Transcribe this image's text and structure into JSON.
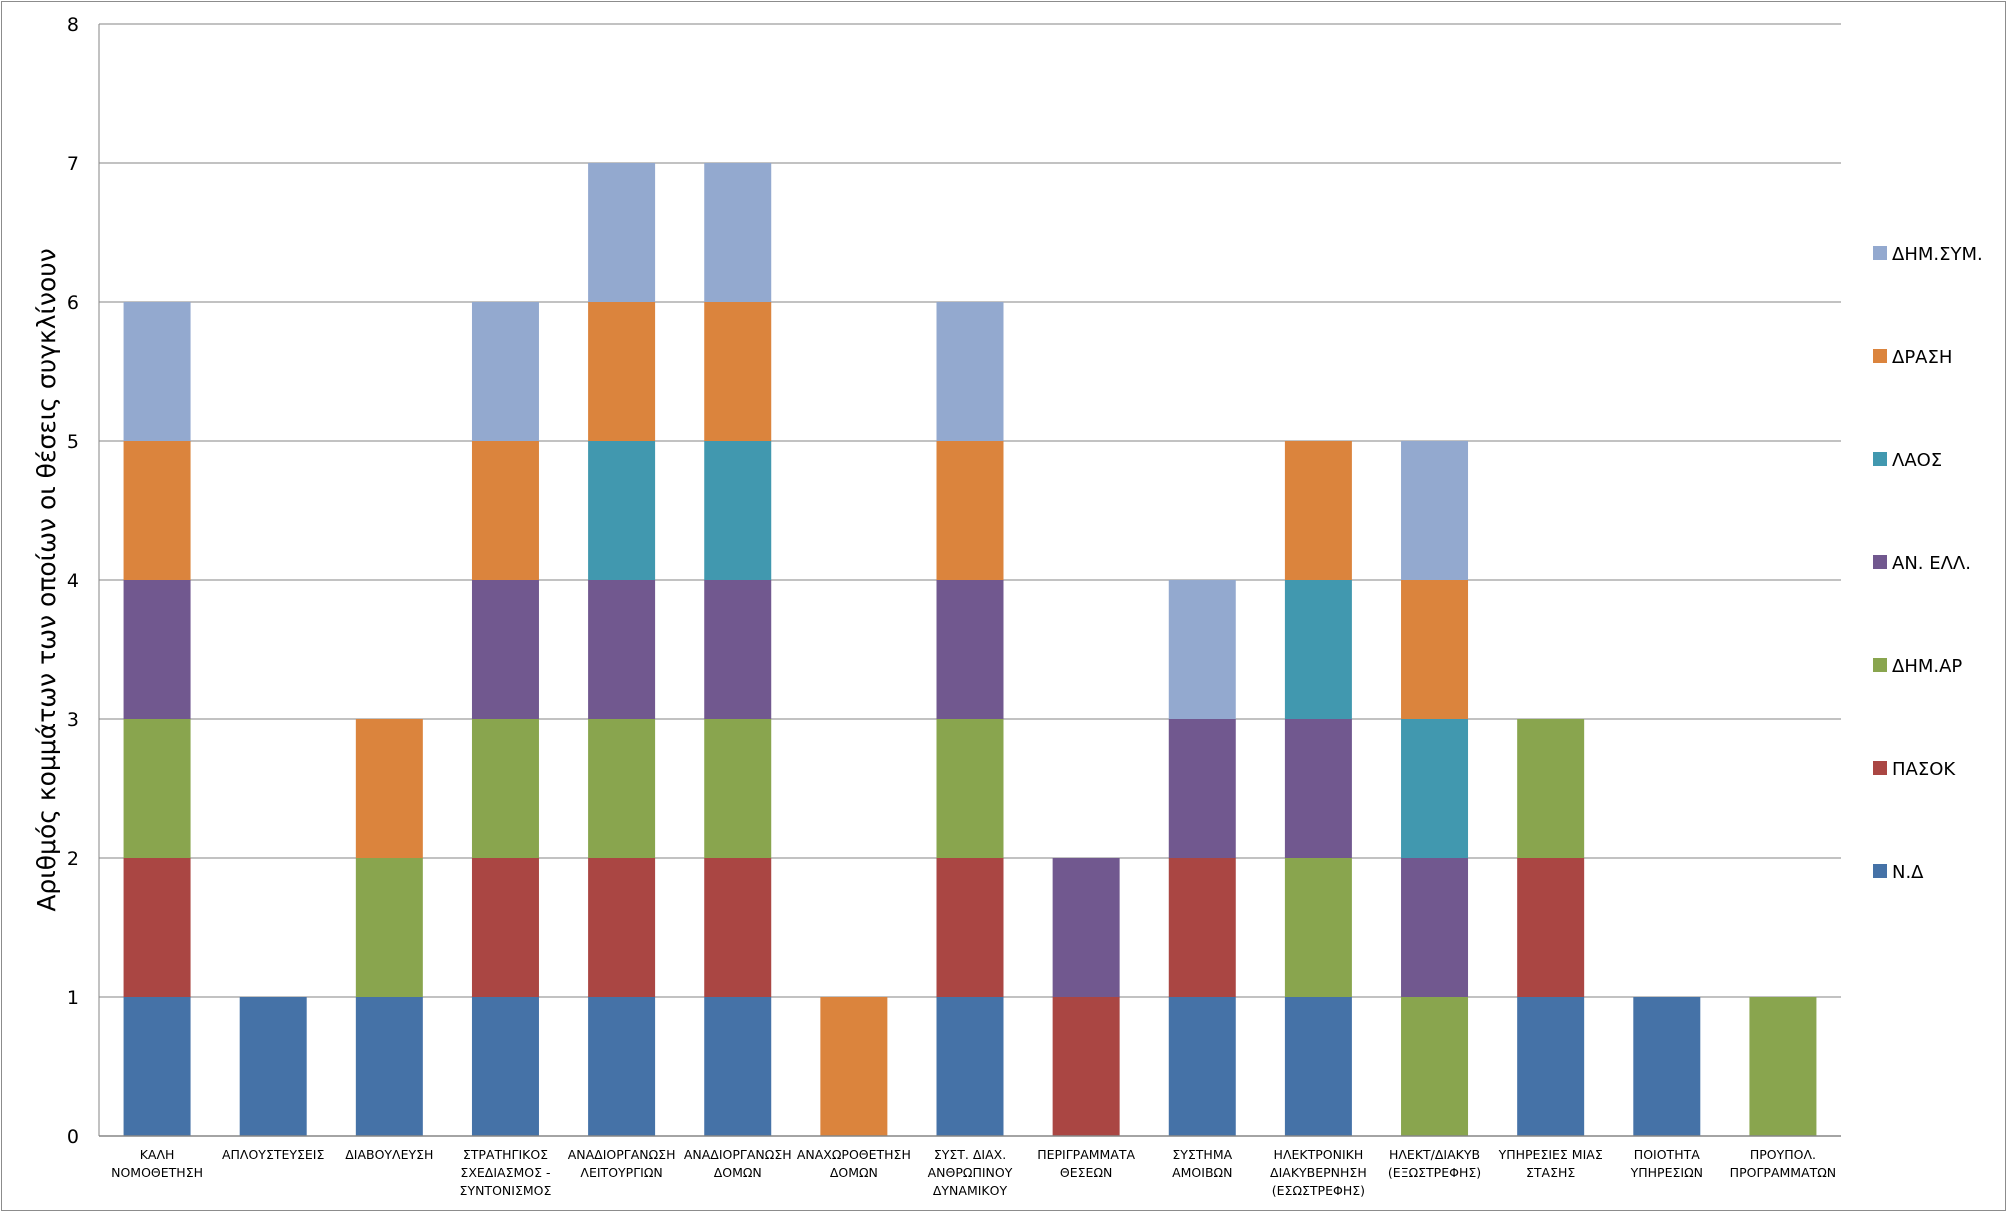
{
  "chart_data": {
    "type": "bar",
    "stacked": true,
    "ylabel": "Αριθμός κομμάτων των οποίων οι θέσεις συγκλίνουν",
    "xlabel": "",
    "ylim": [
      0,
      8
    ],
    "yticks": [
      0,
      1,
      2,
      3,
      4,
      5,
      6,
      7,
      8
    ],
    "grid": true,
    "legend_position": "right",
    "categories": [
      [
        "ΚΑΛΗ",
        "ΝΟΜΟΘΕΤΗΣΗ"
      ],
      [
        "ΑΠΛΟΥΣΤΕΥΣΕΙΣ"
      ],
      [
        "ΔΙΑΒΟΥΛΕΥΣΗ"
      ],
      [
        "ΣΤΡΑΤΗΓΙΚΟΣ",
        "ΣΧΕΔΙΑΣΜΟΣ -",
        "ΣΥΝΤΟΝΙΣΜΟΣ"
      ],
      [
        "ΑΝΑΔΙΟΡΓΑΝΩΣΗ",
        "ΛΕΙΤΟΥΡΓΙΩΝ"
      ],
      [
        "ΑΝΑΔΙΟΡΓΑΝΩΣΗ",
        "ΔΟΜΩΝ"
      ],
      [
        "ΑΝΑΧΩΡΟΘΕΤΗΣΗ",
        "ΔΟΜΩΝ"
      ],
      [
        "ΣΥΣΤ. ΔΙΑΧ.",
        "ΑΝΘΡΩΠΙΝΟΥ",
        "ΔΥΝΑΜΙΚΟΥ"
      ],
      [
        "ΠΕΡΙΓΡΑΜΜΑΤΑ",
        "ΘΕΣΕΩΝ"
      ],
      [
        "ΣΥΣΤΗΜΑ",
        "ΑΜΟΙΒΩΝ"
      ],
      [
        "ΗΛΕΚΤΡΟΝΙΚΗ",
        "ΔΙΑΚΥΒΕΡΝΗΣΗ",
        "(ΕΣΩΣΤΡΕΦΗΣ)"
      ],
      [
        "ΗΛΕΚΤ/ΔΙΑΚΥΒ",
        "(ΕΞΩΣΤΡΕΦΗΣ)"
      ],
      [
        "ΥΠΗΡΕΣΙΕΣ ΜΙΑΣ",
        "ΣΤΑΣΗΣ"
      ],
      [
        "ΠΟΙΟΤΗΤΑ",
        "ΥΠΗΡΕΣΙΩΝ"
      ],
      [
        "ΠΡΟΥΠΟΛ.",
        "ΠΡΟΓΡΑΜΜΑΤΩΝ"
      ]
    ],
    "series": [
      {
        "name": "Ν.Δ",
        "color": "#4572a7",
        "values": [
          1,
          1,
          1,
          1,
          1,
          1,
          0,
          1,
          0,
          1,
          1,
          0,
          1,
          1,
          0
        ]
      },
      {
        "name": "ΠΑΣΟΚ",
        "color": "#aa4643",
        "values": [
          1,
          0,
          0,
          1,
          1,
          1,
          0,
          1,
          1,
          1,
          0,
          0,
          1,
          0,
          0
        ]
      },
      {
        "name": "ΔΗΜ.ΑΡ",
        "color": "#89a54e",
        "values": [
          1,
          0,
          1,
          1,
          1,
          1,
          0,
          1,
          0,
          0,
          1,
          1,
          1,
          0,
          1
        ]
      },
      {
        "name": "ΑΝ. ΕΛΛ.",
        "color": "#71588f",
        "values": [
          1,
          0,
          0,
          1,
          1,
          1,
          0,
          1,
          1,
          1,
          1,
          1,
          0,
          0,
          0
        ]
      },
      {
        "name": "ΛΑΟΣ",
        "color": "#4198af",
        "values": [
          0,
          0,
          0,
          0,
          1,
          1,
          0,
          0,
          0,
          0,
          1,
          1,
          0,
          0,
          0
        ]
      },
      {
        "name": "ΔΡΑΣΗ",
        "color": "#db843d",
        "values": [
          1,
          0,
          1,
          1,
          1,
          1,
          1,
          1,
          0,
          0,
          1,
          1,
          0,
          0,
          0
        ]
      },
      {
        "name": "ΔΗΜ.ΣΥΜ.",
        "color": "#93a9cf",
        "values": [
          1,
          0,
          0,
          1,
          1,
          1,
          0,
          1,
          0,
          1,
          0,
          1,
          0,
          0,
          0
        ]
      }
    ]
  }
}
